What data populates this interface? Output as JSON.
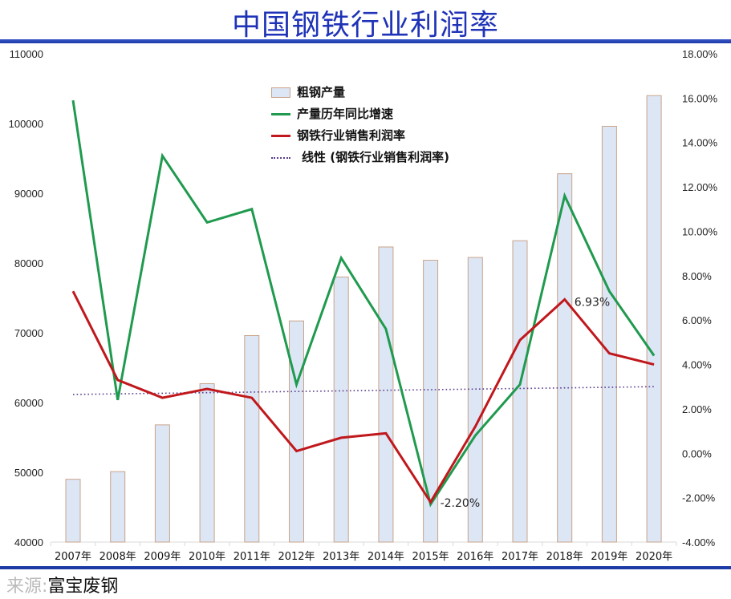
{
  "header": {
    "title": "中国钢铁行业利润率"
  },
  "footer": {
    "source_label": "来源:",
    "source_value": "富宝废钢"
  },
  "legend": {
    "items": [
      {
        "label": "粗钢产量",
        "type": "bar",
        "color": "#dde6f5",
        "border": "#c9a48a"
      },
      {
        "label": "产量历年同比增速",
        "type": "line",
        "color": "#1f9a4e"
      },
      {
        "label": "钢铁行业销售利润率",
        "type": "line",
        "color": "#c0181c"
      },
      {
        "label": "线性 (钢铁行业销售利润率)",
        "type": "dotted",
        "color": "#5b3d8c"
      }
    ]
  },
  "chart_data": {
    "type": "bar+line",
    "title": "中国钢铁行业利润率",
    "categories": [
      "2007年",
      "2008年",
      "2009年",
      "2010年",
      "2011年",
      "2012年",
      "2013年",
      "2014年",
      "2015年",
      "2016年",
      "2017年",
      "2018年",
      "2019年",
      "2020年"
    ],
    "left_axis": {
      "min": 40000,
      "max": 110000,
      "step": 10000,
      "ticks": [
        "110000",
        "100000",
        "90000",
        "80000",
        "70000",
        "60000",
        "50000",
        "40000"
      ]
    },
    "right_axis": {
      "min": -4,
      "max": 18,
      "step": 2,
      "ticks": [
        "18.00%",
        "16.00%",
        "14.00%",
        "12.00%",
        "10.00%",
        "8.00%",
        "6.00%",
        "4.00%",
        "2.00%",
        "0.00%",
        "-2.00%",
        "-4.00%"
      ]
    },
    "series": [
      {
        "name": "粗钢产量",
        "type": "bar",
        "axis": "left",
        "color": "#dde6f5",
        "values": [
          49000,
          50100,
          56800,
          62700,
          69600,
          71700,
          78000,
          82300,
          80400,
          80800,
          83200,
          92800,
          99600,
          104000
        ]
      },
      {
        "name": "产量历年同比增速",
        "type": "line",
        "axis": "right",
        "unit": "%",
        "color": "#1f9a4e",
        "values": [
          15.9,
          2.4,
          13.4,
          10.4,
          11.0,
          3.1,
          8.8,
          5.6,
          -2.3,
          0.8,
          3.1,
          11.6,
          7.3,
          4.4
        ]
      },
      {
        "name": "钢铁行业销售利润率",
        "type": "line",
        "axis": "right",
        "unit": "%",
        "color": "#c0181c",
        "values": [
          7.3,
          3.3,
          2.5,
          2.9,
          2.5,
          0.1,
          0.7,
          0.9,
          -2.2,
          1.2,
          5.1,
          6.93,
          4.5,
          4.0
        ]
      },
      {
        "name": "线性 (钢铁行业销售利润率)",
        "type": "trendline",
        "axis": "right",
        "unit": "%",
        "color": "#5b3d8c",
        "values": [
          2.65,
          3.0
        ]
      }
    ],
    "annotations": [
      {
        "category": "2015年",
        "series": "钢铁行业销售利润率",
        "text": "-2.20%"
      },
      {
        "category": "2018年",
        "series": "钢铁行业销售利润率",
        "text": "6.93%"
      }
    ],
    "grid": false,
    "legend_position": "top-center-inside"
  }
}
